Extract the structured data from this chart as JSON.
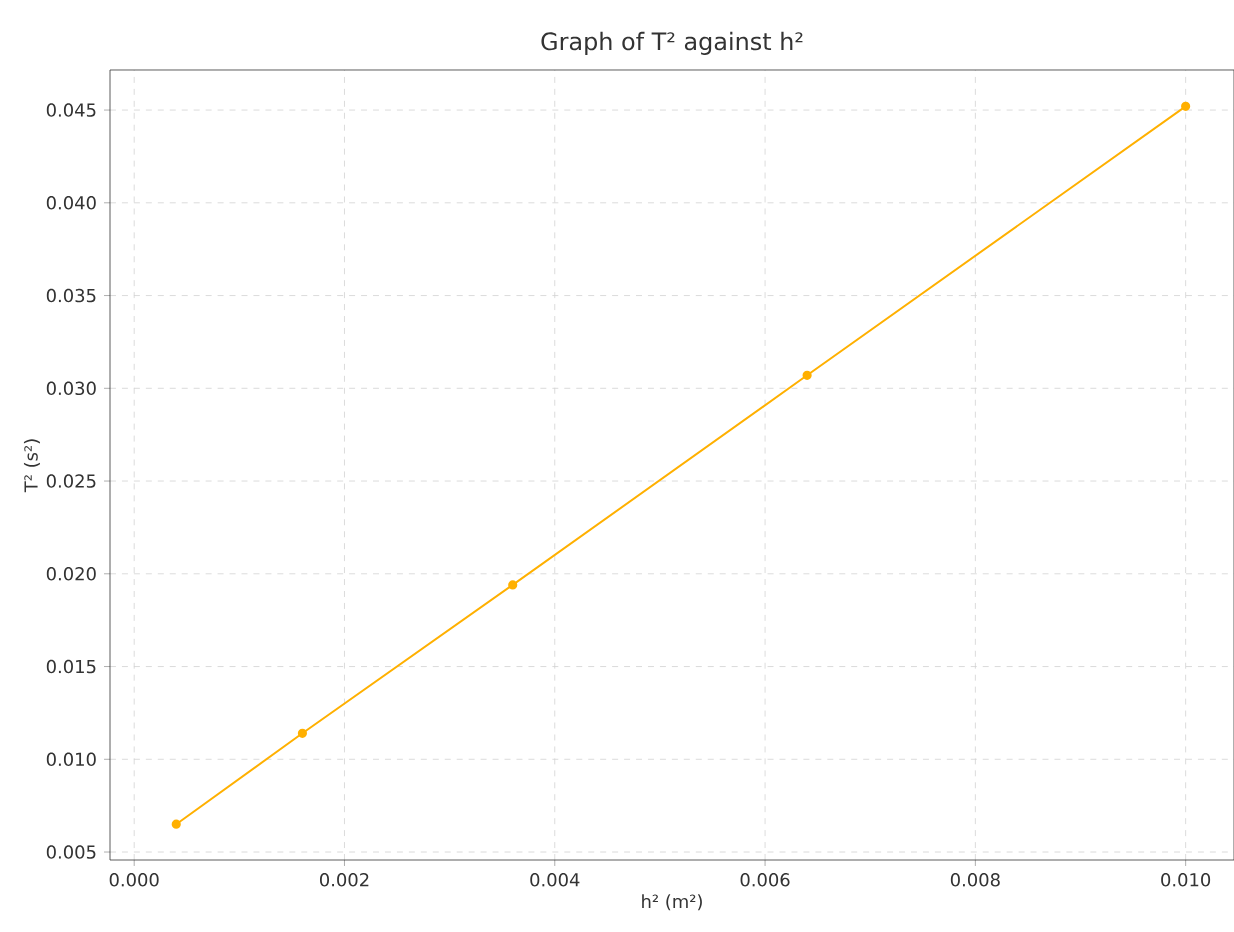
{
  "chart_data": {
    "type": "line",
    "title": "Graph of T² against h²",
    "xlabel": "h² (m²)",
    "ylabel": "T² (s²)",
    "x": [
      0.0004,
      0.0016,
      0.0036,
      0.0064,
      0.01
    ],
    "series": [
      {
        "color": "#ffb000",
        "values": [
          0.0065,
          0.0114,
          0.0194,
          0.0307,
          0.0452
        ]
      }
    ],
    "xlim": [
      -0.00023,
      0.01046
    ],
    "ylim": [
      0.00457,
      0.04716
    ],
    "xticks": [
      {
        "value": 0,
        "label": "0.000"
      },
      0.002,
      0.004,
      0.006,
      0.008,
      {
        "value": 0.01,
        "label": "0.010"
      }
    ],
    "yticks": [
      0.005,
      {
        "value": 0.01,
        "label": "0.010"
      },
      0.015,
      {
        "value": 0.02,
        "label": "0.020"
      },
      0.025,
      {
        "value": 0.03,
        "label": "0.030"
      },
      0.035,
      {
        "value": 0.04,
        "label": "0.040"
      },
      0.045
    ],
    "grid": true,
    "marker": "circle",
    "line_style": "solid"
  }
}
